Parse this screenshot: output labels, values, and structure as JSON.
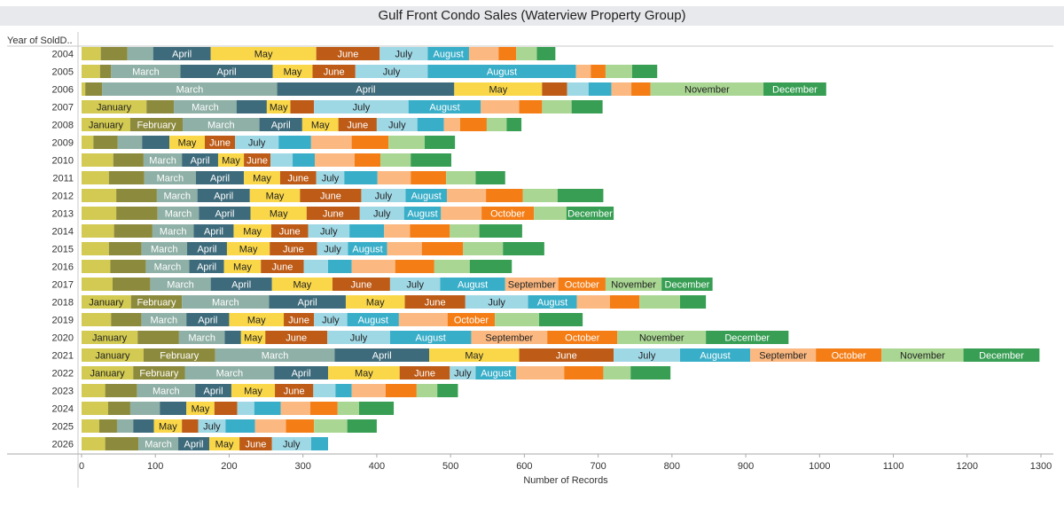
{
  "title": "Gulf Front Condo Sales (Waterview Property Group)",
  "row_header": "Year of SoldD..",
  "xlabel": "Number of Records",
  "colors": {
    "January": "#d2ca52",
    "February": "#8c8a3d",
    "March": "#8fb0a6",
    "April": "#3e6b7b",
    "May": "#fad749",
    "June": "#bd5b17",
    "July": "#9fd8e5",
    "August": "#39aec8",
    "September": "#fbb880",
    "October": "#f47d16",
    "November": "#a9d793",
    "December": "#379e53"
  },
  "chart_data": {
    "type": "bar",
    "orientation": "horizontal",
    "stacked": true,
    "title": "Gulf Front Condo Sales (Waterview Property Group)",
    "xlabel": "Number of Records",
    "row_header": "Year of SoldD..",
    "xlim": [
      0,
      1300
    ],
    "xticks": [
      0,
      100,
      200,
      300,
      400,
      500,
      600,
      700,
      800,
      900,
      1000,
      1100,
      1200,
      1300
    ],
    "months": [
      "January",
      "February",
      "March",
      "April",
      "May",
      "June",
      "July",
      "August",
      "September",
      "October",
      "November",
      "December"
    ],
    "categories": [
      "2004",
      "2005",
      "2006",
      "2007",
      "2008",
      "2009",
      "2010",
      "2011",
      "2012",
      "2013",
      "2014",
      "2015",
      "2016",
      "2017",
      "2018",
      "2019",
      "2020",
      "2021",
      "2022",
      "2023",
      "2024",
      "2025",
      "2026"
    ],
    "series": [
      {
        "name": "January",
        "values": [
          26,
          25,
          5,
          88,
          66,
          16,
          43,
          37,
          47,
          47,
          44,
          37,
          39,
          42,
          67,
          40,
          76,
          84,
          70,
          32,
          36,
          24,
          32
        ]
      },
      {
        "name": "February",
        "values": [
          36,
          15,
          23,
          37,
          71,
          33,
          41,
          48,
          55,
          56,
          52,
          44,
          48,
          51,
          69,
          41,
          56,
          97,
          70,
          43,
          30,
          24,
          45
        ]
      },
      {
        "name": "March",
        "values": [
          35,
          94,
          237,
          85,
          104,
          33,
          52,
          70,
          55,
          56,
          56,
          62,
          59,
          82,
          118,
          61,
          62,
          162,
          121,
          79,
          40,
          22,
          54
        ]
      },
      {
        "name": "April",
        "values": [
          78,
          125,
          240,
          41,
          58,
          37,
          49,
          65,
          71,
          70,
          54,
          54,
          47,
          83,
          104,
          58,
          22,
          128,
          73,
          49,
          36,
          28,
          42
        ]
      },
      {
        "name": "May",
        "values": [
          143,
          54,
          119,
          32,
          49,
          48,
          35,
          49,
          68,
          76,
          51,
          58,
          50,
          82,
          80,
          74,
          33,
          122,
          97,
          59,
          38,
          38,
          41
        ]
      },
      {
        "name": "June",
        "values": [
          86,
          58,
          34,
          32,
          52,
          41,
          36,
          49,
          83,
          72,
          50,
          64,
          58,
          78,
          82,
          41,
          84,
          128,
          68,
          52,
          31,
          22,
          44
        ]
      },
      {
        "name": "July",
        "values": [
          65,
          98,
          29,
          128,
          55,
          59,
          30,
          38,
          60,
          60,
          56,
          42,
          33,
          68,
          85,
          45,
          85,
          90,
          35,
          30,
          23,
          37,
          53
        ]
      },
      {
        "name": "August",
        "values": [
          56,
          201,
          31,
          98,
          36,
          44,
          30,
          45,
          56,
          50,
          47,
          53,
          32,
          88,
          66,
          70,
          110,
          95,
          55,
          22,
          36,
          40,
          23
        ]
      },
      {
        "name": "September",
        "values": [
          40,
          20,
          27,
          52,
          22,
          55,
          54,
          45,
          53,
          55,
          35,
          47,
          59,
          72,
          45,
          66,
          103,
          89,
          65,
          46,
          40,
          42,
          0
        ]
      },
      {
        "name": "October",
        "values": [
          24,
          20,
          26,
          31,
          36,
          50,
          35,
          48,
          50,
          71,
          54,
          56,
          53,
          64,
          40,
          64,
          95,
          89,
          53,
          42,
          37,
          38,
          0
        ]
      },
      {
        "name": "November",
        "values": [
          28,
          36,
          153,
          40,
          27,
          49,
          41,
          40,
          47,
          44,
          40,
          54,
          48,
          76,
          55,
          60,
          120,
          111,
          37,
          28,
          29,
          45,
          0
        ]
      },
      {
        "name": "December",
        "values": [
          25,
          34,
          85,
          42,
          20,
          41,
          55,
          40,
          62,
          64,
          58,
          56,
          57,
          69,
          35,
          59,
          112,
          103,
          54,
          28,
          47,
          40,
          0
        ]
      }
    ]
  }
}
